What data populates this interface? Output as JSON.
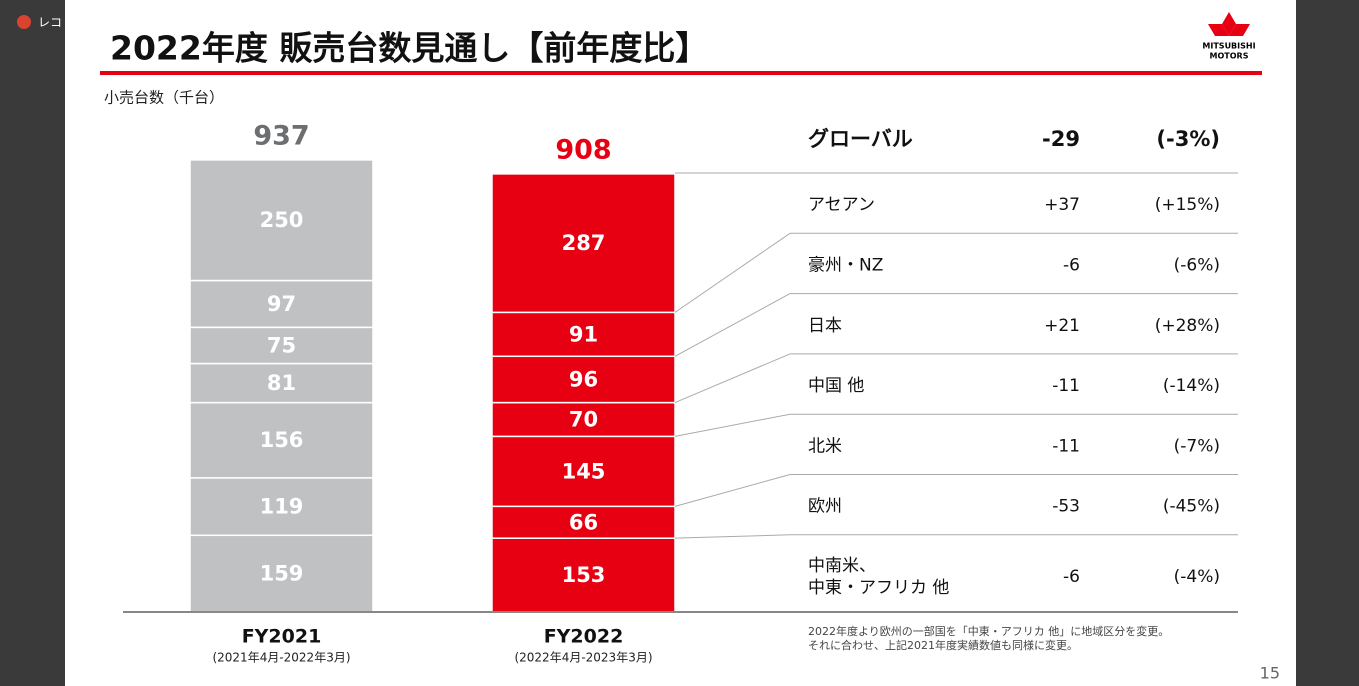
{
  "recording_label": "レコ",
  "header": {
    "title": "2022年度 販売台数見通し【前年度比】",
    "logo_lines": [
      "MITSUBISHI",
      "MOTORS"
    ]
  },
  "chart_data": {
    "type": "bar",
    "stacked": true,
    "unit_label": "小売台数（千台）",
    "categories": [
      "FY2021",
      "FY2022"
    ],
    "category_sublabels": [
      "(2021年4月-2022年3月)",
      "(2022年4月-2023年3月)"
    ],
    "colors": [
      "#c0c1c3",
      "#e60012"
    ],
    "totals": [
      937,
      908
    ],
    "total_colors": [
      "#6d6e70",
      "#e60012"
    ],
    "series": [
      {
        "values": [
          159,
          153
        ]
      },
      {
        "values": [
          119,
          66
        ]
      },
      {
        "values": [
          156,
          145
        ]
      },
      {
        "values": [
          81,
          70
        ]
      },
      {
        "values": [
          75,
          96
        ]
      },
      {
        "values": [
          97,
          91
        ]
      },
      {
        "values": [
          250,
          287
        ]
      }
    ]
  },
  "table": {
    "rows": [
      [
        "グローバル",
        "-29",
        "(-3%)"
      ],
      [
        "アセアン",
        "+37",
        "(+15%)"
      ],
      [
        "豪州・NZ",
        "-6",
        "(-6%)"
      ],
      [
        "日本",
        "+21",
        "(+28%)"
      ],
      [
        "中国 他",
        "-11",
        "(-14%)"
      ],
      [
        "北米",
        "-11",
        "(-7%)"
      ],
      [
        "欧州",
        "-53",
        "(-45%)"
      ],
      [
        "中南米、\n中東・アフリカ 他",
        "-6",
        "(-4%)"
      ]
    ]
  },
  "footnote": [
    "2022年度より欧州の一部国を「中東・アフリカ 他」に地域区分を変更。",
    "それに合わせ、上記2021年度実績数値も同様に変更。"
  ],
  "page_number": "15"
}
